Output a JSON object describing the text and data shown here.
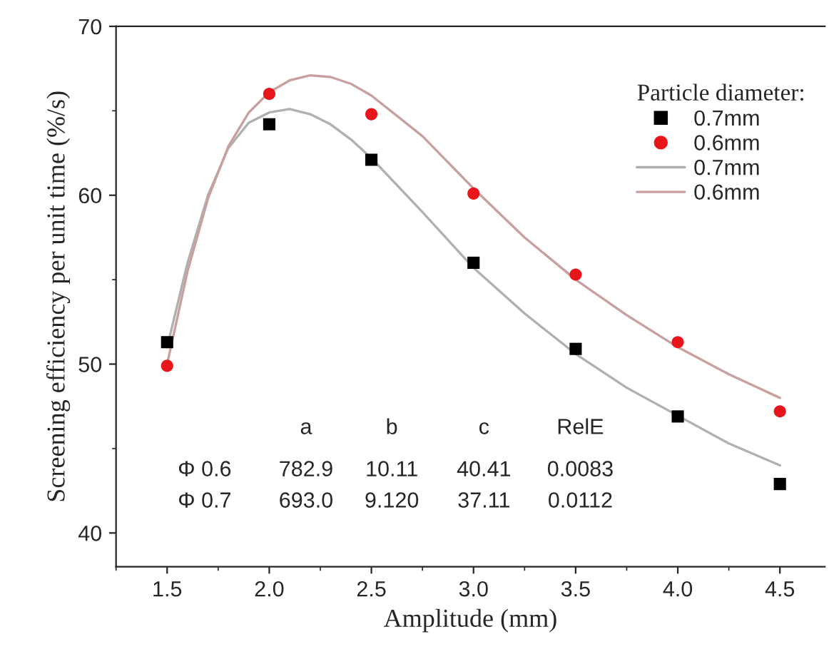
{
  "chart_data": {
    "type": "scatter",
    "xlabel": "Amplitude (mm)",
    "ylabel": "Screening efficiency per unit time (%/s)",
    "legend_title": "Particle diameter:",
    "legend": "top right",
    "xlim": [
      1.25,
      4.72
    ],
    "xticks": [
      {
        "value": 1.5,
        "label": "1.5"
      },
      {
        "value": 2.0,
        "label": "2.0"
      },
      {
        "value": 2.5,
        "label": "2.5"
      },
      {
        "value": 3.0,
        "label": "3.0"
      },
      {
        "value": 3.5,
        "label": "3.5"
      },
      {
        "value": 4.0,
        "label": "4.0"
      },
      {
        "value": 4.5,
        "label": "4.5"
      }
    ],
    "ylim": [
      38,
      70
    ],
    "yticks": [
      40,
      50,
      60,
      70
    ],
    "series": [
      {
        "name": "0.7mm",
        "marker": "square",
        "color": "#000000",
        "x": [
          1.5,
          2.0,
          2.5,
          3.0,
          3.5,
          4.0,
          4.5
        ],
        "values": [
          51.3,
          64.2,
          62.1,
          56.0,
          50.9,
          46.9,
          42.9
        ]
      },
      {
        "name": "0.6mm",
        "marker": "circle",
        "color": "#e8161b",
        "x": [
          1.5,
          2.0,
          2.5,
          3.0,
          3.5,
          4.0,
          4.5
        ],
        "values": [
          49.9,
          66.0,
          64.8,
          60.1,
          55.3,
          51.3,
          47.2
        ]
      },
      {
        "name": "0.7mm",
        "type": "line",
        "color": "#b0b0b0",
        "x": [
          1.5,
          1.6,
          1.7,
          1.8,
          1.9,
          2.0,
          2.1,
          2.2,
          2.3,
          2.4,
          2.5,
          2.75,
          3.0,
          3.25,
          3.5,
          3.75,
          4.25,
          4.5
        ],
        "values": [
          51.0,
          56.0,
          60.0,
          62.8,
          64.3,
          64.9,
          65.1,
          64.8,
          64.2,
          63.3,
          62.2,
          59.0,
          55.7,
          53.0,
          50.6,
          48.6,
          45.3,
          44.0
        ]
      },
      {
        "name": "0.6mm",
        "type": "line",
        "color": "#c8a0a0",
        "x": [
          1.5,
          1.6,
          1.7,
          1.8,
          1.9,
          2.0,
          2.1,
          2.2,
          2.3,
          2.4,
          2.5,
          2.75,
          3.0,
          3.25,
          3.5,
          3.75,
          4.0,
          4.25,
          4.5
        ],
        "values": [
          50.0,
          55.5,
          59.8,
          62.9,
          64.9,
          66.1,
          66.8,
          67.1,
          67.0,
          66.6,
          65.9,
          63.5,
          60.4,
          57.5,
          55.0,
          52.9,
          51.0,
          49.4,
          48.0
        ]
      }
    ],
    "annotations": [
      "a",
      "b",
      "c",
      "RelE",
      "Φ 0.6",
      "782.9",
      "10.11",
      "40.41",
      "0.0083",
      "Φ 0.7",
      "693.0",
      "9.120",
      "37.11",
      "0.0112"
    ]
  }
}
